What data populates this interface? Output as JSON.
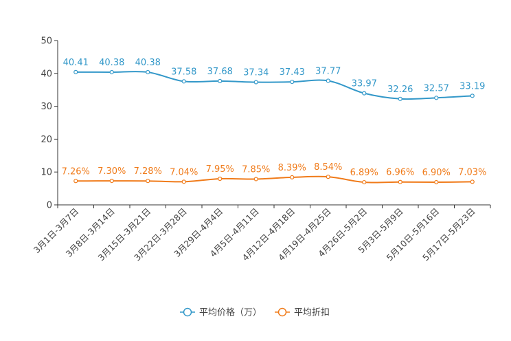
{
  "chart_data": {
    "type": "line",
    "title": "",
    "xlabel": "",
    "ylabel": "",
    "ylim": [
      0,
      50
    ],
    "yticks": [
      0,
      10,
      20,
      30,
      40,
      50
    ],
    "grid": false,
    "legend_position": "bottom-center",
    "categories": [
      "3月1日-3月7日",
      "3月8日-3月14日",
      "3月15日-3月21日",
      "3月22日-3月28日",
      "3月29日-4月4日",
      "4月5日-4月11日",
      "4月12日-4月18日",
      "4月19日-4月25日",
      "4月26日-5月2日",
      "5月3日-5月9日",
      "5月10日-5月16日",
      "5月17日-5月23日"
    ],
    "series": [
      {
        "name": "平均价格（万）",
        "color": "#3398c9",
        "values": [
          40.41,
          40.38,
          40.38,
          37.58,
          37.68,
          37.34,
          37.43,
          37.77,
          33.97,
          32.26,
          32.57,
          33.19
        ],
        "labels": [
          "40.41",
          "40.38",
          "40.38",
          "37.58",
          "37.68",
          "37.34",
          "37.43",
          "37.77",
          "33.97",
          "32.26",
          "32.57",
          "33.19"
        ]
      },
      {
        "name": "平均折扣",
        "color": "#f07b1a",
        "values": [
          7.26,
          7.3,
          7.28,
          7.04,
          7.95,
          7.85,
          8.39,
          8.54,
          6.89,
          6.96,
          6.9,
          7.03
        ],
        "labels": [
          "7.26%",
          "7.30%",
          "7.28%",
          "7.04%",
          "7.95%",
          "7.85%",
          "8.39%",
          "8.54%",
          "6.89%",
          "6.96%",
          "6.90%",
          "7.03%"
        ]
      }
    ]
  }
}
